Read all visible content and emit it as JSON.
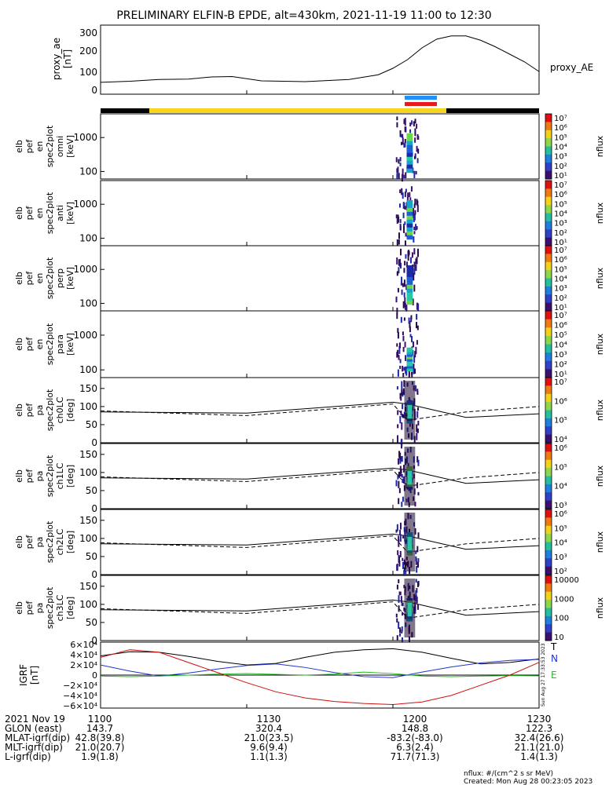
{
  "title": "PRELIMINARY ELFIN-B EPDE, alt=430km, 2021-11-19 11:00 to 12:30",
  "colors": {
    "quiet_bar": "#000000",
    "science_bar": "#f7d51e",
    "marker_blue": "#1e90ff",
    "marker_red": "#e41a1c",
    "comp_T": "#000000",
    "comp_N": "#2233cc",
    "comp_E": "#22bb22",
    "red_curve": "#cc1111"
  },
  "x_axis": {
    "tick_labels": [
      "1100",
      "1130",
      "1200",
      "1230"
    ],
    "tick_hours": [
      11.0,
      11.5,
      12.0,
      12.5
    ],
    "range_hours": [
      11.0,
      12.5
    ]
  },
  "panels": {
    "proxy_ae": {
      "ylabel": [
        "proxy_ae",
        "[nT]"
      ],
      "label_right": "proxy_AE",
      "yticks": [
        "300",
        "200",
        "100",
        "0"
      ]
    },
    "en_omni": {
      "ylabel": [
        "elb",
        "pef",
        "en",
        "spec2plot",
        "omni",
        "[keV]"
      ],
      "yticks": [
        "1000",
        "100"
      ]
    },
    "en_anti": {
      "ylabel": [
        "elb",
        "pef",
        "en",
        "spec2plot",
        "anti",
        "[keV]"
      ],
      "yticks": [
        "1000",
        "100"
      ]
    },
    "en_perp": {
      "ylabel": [
        "elb",
        "pef",
        "en",
        "spec2plot",
        "perp",
        "[keV]"
      ],
      "yticks": [
        "1000",
        "100"
      ]
    },
    "en_para": {
      "ylabel": [
        "elb",
        "pef",
        "en",
        "spec2plot",
        "para",
        "[keV]"
      ],
      "yticks": [
        "1000",
        "100"
      ]
    },
    "pa_ch0": {
      "ylabel": [
        "elb",
        "pef",
        "pa",
        "spec2plot",
        "ch0LC",
        "[deg]"
      ],
      "yticks": [
        "150",
        "100",
        "50",
        "0"
      ]
    },
    "pa_ch1": {
      "ylabel": [
        "elb",
        "pef",
        "pa",
        "spec2plot",
        "ch1LC",
        "[deg]"
      ],
      "yticks": [
        "150",
        "100",
        "50",
        "0"
      ]
    },
    "pa_ch2": {
      "ylabel": [
        "elb",
        "pef",
        "pa",
        "spec2plot",
        "ch2LC",
        "[deg]"
      ],
      "yticks": [
        "150",
        "100",
        "50",
        "0"
      ]
    },
    "pa_ch3": {
      "ylabel": [
        "elb",
        "pef",
        "pa",
        "spec2plot",
        "ch3LC",
        "[deg]"
      ],
      "yticks": [
        "150",
        "100",
        "50",
        "0"
      ]
    },
    "igrf": {
      "ylabel": [
        "IGRF",
        "[nT]"
      ],
      "yticks": [
        "6×10⁴",
        "4×10⁴",
        "2×10⁴",
        "0",
        "−2×10⁴",
        "−4×10⁴",
        "−6×10⁴"
      ],
      "legend": [
        "T",
        "N",
        "E"
      ],
      "side_stamp": "Sun Aug 27 17:33:53 2023"
    }
  },
  "colorbars": {
    "unit": "nflux",
    "cb1": [
      "10⁷",
      "10⁶",
      "10⁵",
      "10⁴",
      "10³",
      "10²",
      "10¹"
    ],
    "cb2": [
      "10⁷",
      "10⁶",
      "10⁵",
      "10⁴",
      "10³",
      "10²",
      "10¹"
    ],
    "cb3": [
      "10⁷",
      "10⁶",
      "10⁵",
      "10⁴",
      "10³",
      "10²",
      "10¹"
    ],
    "cb4": [
      "10⁷",
      "10⁶",
      "10⁵",
      "10⁴",
      "10³",
      "10²",
      "10¹"
    ],
    "cb5": [
      "10⁷",
      "10⁶",
      "10⁵",
      "10⁴"
    ],
    "cb6": [
      "10⁶",
      "10⁵",
      "10⁴",
      "10³"
    ],
    "cb7": [
      "10⁶",
      "10⁵",
      "10⁴",
      "10³",
      "10²"
    ],
    "cb8": [
      "10000",
      "1000",
      "100",
      "10"
    ]
  },
  "ephemeris": {
    "rows": [
      {
        "label": "2021 Nov 19",
        "values": [
          "1100",
          "1130",
          "1200",
          "1230"
        ]
      },
      {
        "label": "GLON (east)",
        "values": [
          "143.7",
          "320.4",
          "148.8",
          "122.3"
        ]
      },
      {
        "label": "MLAT-igrf(dip)",
        "values": [
          "42.8(39.8)",
          "21.0(23.5)",
          "-83.2(-83.0)",
          "32.4(26.6)"
        ]
      },
      {
        "label": "MLT-igrf(dip)",
        "values": [
          "21.0(20.7)",
          "9.6(9.4)",
          "6.3(2.4)",
          "21.1(21.0)"
        ]
      },
      {
        "label": "L-igrf(dip)",
        "values": [
          "1.9(1.8)",
          "1.1(1.3)",
          "71.7(71.3)",
          "1.4(1.3)"
        ]
      }
    ]
  },
  "footer": {
    "units": "nflux: #/(cm^2 s sr MeV)",
    "created": "Created: Mon Aug 28 00:23:05 2023"
  },
  "chart_data": [
    {
      "type": "line",
      "panel": "proxy_ae",
      "ylim": [
        0,
        320
      ],
      "x": [
        11.0,
        11.1,
        11.2,
        11.3,
        11.38,
        11.45,
        11.55,
        11.7,
        11.85,
        11.95,
        12.0,
        12.05,
        12.1,
        12.15,
        12.2,
        12.25,
        12.3,
        12.35,
        12.4,
        12.45,
        12.5
      ],
      "series": [
        {
          "values": [
            55,
            60,
            68,
            70,
            80,
            82,
            62,
            58,
            68,
            90,
            120,
            160,
            215,
            255,
            270,
            270,
            250,
            220,
            185,
            150,
            105
          ]
        }
      ]
    },
    {
      "type": "heatmap",
      "panel": "spectrograms",
      "note_time_window": [
        12.02,
        12.08
      ],
      "energy_ylim": [
        60,
        5000
      ],
      "pitch_ylim": [
        0,
        180
      ]
    },
    {
      "type": "line",
      "panel": "pa_lines",
      "ylim": [
        0,
        180
      ],
      "x": [
        11.0,
        11.5,
        12.0,
        12.05,
        12.25,
        12.5
      ],
      "series": [
        {
          "values": [
            85,
            82,
            112,
            107,
            70,
            80
          ]
        },
        {
          "values": [
            88,
            75,
            107,
            62,
            85,
            100
          ]
        }
      ]
    },
    {
      "type": "line",
      "panel": "igrf",
      "ylim": [
        -65000,
        65000
      ],
      "x": [
        11.0,
        11.1,
        11.2,
        11.3,
        11.4,
        11.5,
        11.6,
        11.7,
        11.8,
        11.9,
        12.0,
        12.1,
        12.2,
        12.3,
        12.4,
        12.5
      ],
      "series": [
        {
          "name": "T",
          "values": [
            38000,
            46000,
            45000,
            37000,
            27000,
            20000,
            23000,
            35000,
            45000,
            50000,
            52000,
            45000,
            33000,
            22000,
            25000,
            32000
          ]
        },
        {
          "name": "N",
          "values": [
            20000,
            8000,
            -2000,
            4000,
            12000,
            19000,
            22000,
            15000,
            5000,
            -3000,
            -5000,
            6000,
            16000,
            24000,
            29000,
            31000
          ]
        },
        {
          "name": "E",
          "values": [
            -2000,
            -3000,
            -2000,
            0,
            2000,
            3000,
            1500,
            0,
            2000,
            6000,
            3000,
            -2000,
            -3000,
            -2000,
            -1000,
            -1500
          ]
        },
        {
          "values": [
            35000,
            50000,
            45000,
            25000,
            5000,
            -15000,
            -33000,
            -45000,
            -52000,
            -56000,
            -58000,
            -53000,
            -40000,
            -20000,
            0,
            25000
          ]
        }
      ]
    }
  ]
}
